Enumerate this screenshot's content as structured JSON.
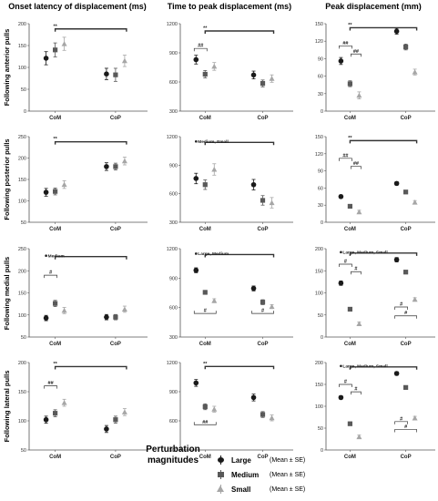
{
  "columns": [
    "Onset latency of displacement (ms)",
    "Time to peak displacement (ms)",
    "Peak displacement (mm)"
  ],
  "rows": [
    "Following anterior pulls",
    "Following posterior pulls",
    "Following medial pulls",
    "Following lateral pulls"
  ],
  "legend": {
    "title_line1": "Perturbation",
    "title_line2": "magnitudes",
    "items": [
      {
        "name": "Large",
        "suffix": "(Mean ± SE)",
        "color": "#1a1a1a",
        "marker": "circle"
      },
      {
        "name": "Medium",
        "suffix": "(Mean ± SE)",
        "color": "#595959",
        "marker": "square"
      },
      {
        "name": "Small",
        "suffix": "(Mean ± SE)",
        "color": "#a6a6a6",
        "marker": "triangle"
      }
    ]
  },
  "chart_data": [
    {
      "type": "scatter",
      "row": 0,
      "col": 0,
      "categories": [
        "CoM",
        "CoP"
      ],
      "ylim": [
        0,
        200
      ],
      "yticks": [
        0,
        50,
        100,
        150,
        200
      ],
      "series": [
        {
          "name": "Large",
          "values": [
            121,
            85
          ],
          "errors": [
            15,
            13
          ]
        },
        {
          "name": "Medium",
          "values": [
            140,
            83
          ],
          "errors": [
            16,
            15
          ]
        },
        {
          "name": "Small",
          "values": [
            154,
            115
          ],
          "errors": [
            15,
            13
          ]
        }
      ],
      "brackets": [
        {
          "type": "main",
          "label": "**",
          "y": 188
        }
      ]
    },
    {
      "type": "scatter",
      "row": 0,
      "col": 1,
      "categories": [
        "CoM",
        "CoP"
      ],
      "ylim": [
        300,
        1200
      ],
      "yticks": [
        300,
        600,
        900,
        1200
      ],
      "series": [
        {
          "name": "Large",
          "values": [
            830,
            672
          ],
          "errors": [
            45,
            40
          ]
        },
        {
          "name": "Medium",
          "values": [
            680,
            585
          ],
          "errors": [
            38,
            35
          ]
        },
        {
          "name": "Small",
          "values": [
            760,
            635
          ],
          "errors": [
            40,
            38
          ]
        }
      ],
      "brackets": [
        {
          "type": "main",
          "label": "**",
          "y": 1125
        },
        {
          "type": "pair",
          "label": "##",
          "y": 945
        }
      ]
    },
    {
      "type": "scatter",
      "row": 0,
      "col": 2,
      "categories": [
        "CoM",
        "CoP"
      ],
      "ylim": [
        0,
        150
      ],
      "yticks": [
        0,
        30,
        60,
        90,
        120,
        150
      ],
      "series": [
        {
          "name": "Large",
          "values": [
            86,
            137
          ],
          "errors": [
            6,
            5
          ]
        },
        {
          "name": "Medium",
          "values": [
            47,
            110
          ],
          "errors": [
            5,
            5
          ]
        },
        {
          "name": "Small",
          "values": [
            27,
            67
          ],
          "errors": [
            6,
            5
          ]
        }
      ],
      "brackets": [
        {
          "type": "main",
          "label": "**",
          "y": 143
        },
        {
          "type": "pair",
          "label": "##",
          "y": 112
        },
        {
          "type": "pair2",
          "label": "##",
          "y": 98
        }
      ]
    },
    {
      "type": "scatter",
      "row": 1,
      "col": 0,
      "categories": [
        "CoM",
        "CoP"
      ],
      "ylim": [
        50,
        250
      ],
      "yticks": [
        50,
        100,
        150,
        200,
        250
      ],
      "series": [
        {
          "name": "Large",
          "values": [
            120,
            180
          ],
          "errors": [
            9,
            9
          ]
        },
        {
          "name": "Medium",
          "values": [
            122,
            180
          ],
          "errors": [
            8,
            8
          ]
        },
        {
          "name": "Small",
          "values": [
            138,
            193
          ],
          "errors": [
            9,
            9
          ]
        }
      ],
      "brackets": [
        {
          "type": "main",
          "label": "**",
          "y": 238
        }
      ]
    },
    {
      "type": "scatter",
      "row": 1,
      "col": 1,
      "categories": [
        "CoM",
        "CoP"
      ],
      "ylim": [
        300,
        1200
      ],
      "yticks": [
        300,
        600,
        900,
        1200
      ],
      "series": [
        {
          "name": "Large",
          "values": [
            760,
            695
          ],
          "errors": [
            55,
            55
          ]
        },
        {
          "name": "Medium",
          "values": [
            695,
            530
          ],
          "errors": [
            50,
            50
          ]
        },
        {
          "name": "Small",
          "values": [
            855,
            505
          ],
          "errors": [
            60,
            55
          ]
        }
      ],
      "brackets": [
        {
          "type": "main",
          "label": "",
          "y": 1140,
          "note": "Medium, Small"
        }
      ]
    },
    {
      "type": "scatter",
      "row": 1,
      "col": 2,
      "categories": [
        "CoM",
        "CoP"
      ],
      "ylim": [
        0,
        150
      ],
      "yticks": [
        0,
        30,
        60,
        90,
        120,
        150
      ],
      "series": [
        {
          "name": "Large",
          "values": [
            45,
            68
          ],
          "errors": [
            3,
            3
          ]
        },
        {
          "name": "Medium",
          "values": [
            28,
            53
          ],
          "errors": [
            3,
            3
          ]
        },
        {
          "name": "Small",
          "values": [
            18,
            35
          ],
          "errors": [
            3,
            3
          ]
        }
      ],
      "brackets": [
        {
          "type": "main",
          "label": "**",
          "y": 143
        },
        {
          "type": "pair",
          "label": "##",
          "y": 112
        },
        {
          "type": "pair2",
          "label": "##",
          "y": 98
        }
      ]
    },
    {
      "type": "scatter",
      "row": 2,
      "col": 0,
      "categories": [
        "CoM",
        "CoP"
      ],
      "ylim": [
        50,
        250
      ],
      "yticks": [
        50,
        100,
        150,
        200,
        250
      ],
      "series": [
        {
          "name": "Large",
          "values": [
            93,
            95
          ],
          "errors": [
            6,
            6
          ]
        },
        {
          "name": "Medium",
          "values": [
            126,
            95
          ],
          "errors": [
            7,
            6
          ]
        },
        {
          "name": "Small",
          "values": [
            110,
            113
          ],
          "errors": [
            7,
            7
          ]
        }
      ],
      "brackets": [
        {
          "type": "main",
          "label": "",
          "y": 232,
          "note": "Medium"
        },
        {
          "type": "pair",
          "label": "#",
          "y": 190
        }
      ]
    },
    {
      "type": "scatter",
      "row": 2,
      "col": 1,
      "categories": [
        "CoM",
        "CoP"
      ],
      "ylim": [
        300,
        1200
      ],
      "yticks": [
        300,
        600,
        900,
        1200
      ],
      "series": [
        {
          "name": "Large",
          "values": [
            980,
            795
          ],
          "errors": [
            25,
            25
          ]
        },
        {
          "name": "Medium",
          "values": [
            755,
            655
          ],
          "errors": [
            20,
            25
          ]
        },
        {
          "name": "Small",
          "values": [
            670,
            610
          ],
          "errors": [
            20,
            20
          ]
        }
      ],
      "brackets": [
        {
          "type": "main",
          "label": "",
          "y": 1140,
          "note": "Large, Medium"
        },
        {
          "type": "low",
          "label": "#",
          "y": 540
        },
        {
          "type": "lowR",
          "label": "#",
          "y": 540
        }
      ]
    },
    {
      "type": "scatter",
      "row": 2,
      "col": 2,
      "categories": [
        "CoM",
        "CoP"
      ],
      "ylim": [
        0,
        200
      ],
      "yticks": [
        0,
        50,
        100,
        150,
        200
      ],
      "series": [
        {
          "name": "Large",
          "values": [
            122,
            175
          ],
          "errors": [
            5,
            5
          ]
        },
        {
          "name": "Medium",
          "values": [
            63,
            147
          ],
          "errors": [
            4,
            4
          ]
        },
        {
          "name": "Small",
          "values": [
            30,
            85
          ],
          "errors": [
            4,
            4
          ]
        }
      ],
      "brackets": [
        {
          "type": "main",
          "label": "",
          "y": 190,
          "note": "Large, Medium, Small"
        },
        {
          "type": "pair",
          "label": "#",
          "y": 165
        },
        {
          "type": "pair2",
          "label": "#",
          "y": 148
        },
        {
          "type": "r1",
          "label": "#",
          "y": 68
        },
        {
          "type": "r2",
          "label": "#",
          "y": 48
        }
      ]
    },
    {
      "type": "scatter",
      "row": 3,
      "col": 0,
      "categories": [
        "CoM",
        "CoP"
      ],
      "ylim": [
        50,
        200
      ],
      "yticks": [
        50,
        100,
        150,
        200
      ],
      "series": [
        {
          "name": "Large",
          "values": [
            102,
            86
          ],
          "errors": [
            6,
            6
          ]
        },
        {
          "name": "Medium",
          "values": [
            113,
            102
          ],
          "errors": [
            6,
            6
          ]
        },
        {
          "name": "Small",
          "values": [
            131,
            115
          ],
          "errors": [
            6,
            6
          ]
        }
      ],
      "brackets": [
        {
          "type": "main",
          "label": "**",
          "y": 193
        },
        {
          "type": "pair",
          "label": "##",
          "y": 160
        }
      ]
    },
    {
      "type": "scatter",
      "row": 3,
      "col": 1,
      "categories": [
        "CoM",
        "CoP"
      ],
      "ylim": [
        300,
        1200
      ],
      "yticks": [
        300,
        600,
        900,
        1200
      ],
      "series": [
        {
          "name": "Large",
          "values": [
            990,
            840
          ],
          "errors": [
            35,
            35
          ]
        },
        {
          "name": "Medium",
          "values": [
            745,
            665
          ],
          "errors": [
            30,
            30
          ]
        },
        {
          "name": "Small",
          "values": [
            720,
            630
          ],
          "errors": [
            30,
            30
          ]
        }
      ],
      "brackets": [
        {
          "type": "main",
          "label": "**",
          "y": 1160
        },
        {
          "type": "low",
          "label": "##",
          "y": 560
        }
      ]
    },
    {
      "type": "scatter",
      "row": 3,
      "col": 2,
      "categories": [
        "CoM",
        "CoP"
      ],
      "ylim": [
        0,
        200
      ],
      "yticks": [
        0,
        50,
        100,
        150,
        200
      ],
      "series": [
        {
          "name": "Large",
          "values": [
            120,
            175
          ],
          "errors": [
            4,
            4
          ]
        },
        {
          "name": "Medium",
          "values": [
            60,
            143
          ],
          "errors": [
            4,
            4
          ]
        },
        {
          "name": "Small",
          "values": [
            30,
            73
          ],
          "errors": [
            4,
            4
          ]
        }
      ],
      "brackets": [
        {
          "type": "main",
          "label": "",
          "y": 190,
          "note": "Large, Medium, Small"
        },
        {
          "type": "pair",
          "label": "#",
          "y": 150
        },
        {
          "type": "pair2",
          "label": "#",
          "y": 133
        },
        {
          "type": "r1",
          "label": "#",
          "y": 65
        },
        {
          "type": "r2",
          "label": "#",
          "y": 47
        }
      ]
    }
  ]
}
